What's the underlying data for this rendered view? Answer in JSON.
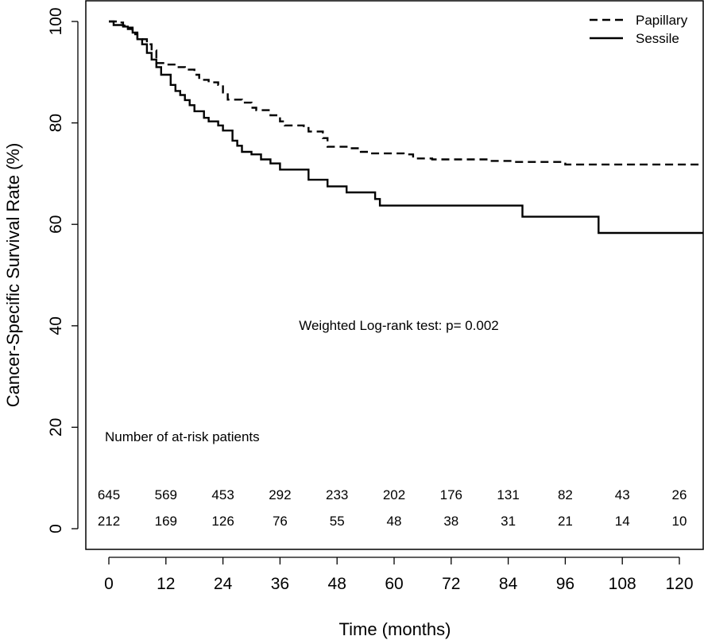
{
  "chart_data": {
    "type": "line",
    "title": "",
    "xlabel": "Time (months)",
    "ylabel": "Cancer-Specific Survival Rate (%)",
    "xlim": [
      0,
      120
    ],
    "ylim": [
      0,
      100
    ],
    "xticks": [
      "0",
      "12",
      "24",
      "36",
      "48",
      "60",
      "72",
      "84",
      "96",
      "108",
      "120"
    ],
    "yticks": [
      "0",
      "20",
      "40",
      "60",
      "80",
      "100"
    ],
    "grid": false,
    "legend_position": "top-right",
    "annotation": "Weighted Log-rank test: p= 0.002",
    "series": [
      {
        "name": "Papillary",
        "style": "dashed",
        "steps": [
          [
            0,
            100
          ],
          [
            2,
            99.8
          ],
          [
            3,
            99.2
          ],
          [
            4,
            98.5
          ],
          [
            5,
            97.5
          ],
          [
            6,
            96.5
          ],
          [
            8,
            95.5
          ],
          [
            9,
            94.3
          ],
          [
            10,
            91.8
          ],
          [
            12,
            91.5
          ],
          [
            14,
            91.0
          ],
          [
            16,
            90.5
          ],
          [
            18,
            89.5
          ],
          [
            19,
            88.5
          ],
          [
            21,
            88.0
          ],
          [
            23,
            87.5
          ],
          [
            24,
            86.0
          ],
          [
            25,
            84.6
          ],
          [
            28,
            84.0
          ],
          [
            30,
            83.0
          ],
          [
            31,
            82.5
          ],
          [
            34,
            81.5
          ],
          [
            36,
            80.3
          ],
          [
            37,
            79.5
          ],
          [
            41,
            79.0
          ],
          [
            42,
            78.3
          ],
          [
            45,
            77.0
          ],
          [
            46,
            75.3
          ],
          [
            50,
            75.0
          ],
          [
            53,
            74.3
          ],
          [
            55,
            74.0
          ],
          [
            62,
            73.8
          ],
          [
            64,
            73.0
          ],
          [
            68,
            72.8
          ],
          [
            80,
            72.5
          ],
          [
            85,
            72.3
          ],
          [
            93,
            72.3
          ],
          [
            96,
            71.8
          ],
          [
            120,
            71.8
          ]
        ]
      },
      {
        "name": "Sessile",
        "style": "solid",
        "steps": [
          [
            0,
            100
          ],
          [
            1,
            99.3
          ],
          [
            3,
            99.0
          ],
          [
            4,
            98.8
          ],
          [
            5,
            97.8
          ],
          [
            6,
            96.5
          ],
          [
            7,
            95.5
          ],
          [
            8,
            93.8
          ],
          [
            9,
            92.5
          ],
          [
            10,
            91.0
          ],
          [
            11,
            89.5
          ],
          [
            13,
            87.5
          ],
          [
            14,
            86.3
          ],
          [
            15,
            85.5
          ],
          [
            16,
            84.5
          ],
          [
            17,
            83.5
          ],
          [
            18,
            82.3
          ],
          [
            20,
            81.0
          ],
          [
            21,
            80.3
          ],
          [
            23,
            79.5
          ],
          [
            24,
            78.5
          ],
          [
            26,
            76.5
          ],
          [
            27,
            75.5
          ],
          [
            28,
            74.3
          ],
          [
            30,
            73.8
          ],
          [
            32,
            72.8
          ],
          [
            34,
            72.0
          ],
          [
            36,
            70.8
          ],
          [
            42,
            68.8
          ],
          [
            46,
            67.5
          ],
          [
            50,
            66.3
          ],
          [
            56,
            65.0
          ],
          [
            57,
            63.7
          ],
          [
            87,
            61.5
          ],
          [
            103,
            58.3
          ],
          [
            120,
            58.3
          ]
        ]
      }
    ],
    "at_risk": {
      "label": "Number of at-risk patients",
      "times": [
        0,
        12,
        24,
        36,
        48,
        60,
        72,
        84,
        96,
        108,
        120
      ],
      "rows": [
        {
          "name": "Papillary",
          "values": [
            "645",
            "569",
            "453",
            "292",
            "233",
            "202",
            "176",
            "131",
            "82",
            "43",
            "26"
          ]
        },
        {
          "name": "Sessile",
          "values": [
            "212",
            "169",
            "126",
            "76",
            "55",
            "48",
            "38",
            "31",
            "21",
            "14",
            "10"
          ]
        }
      ]
    }
  }
}
